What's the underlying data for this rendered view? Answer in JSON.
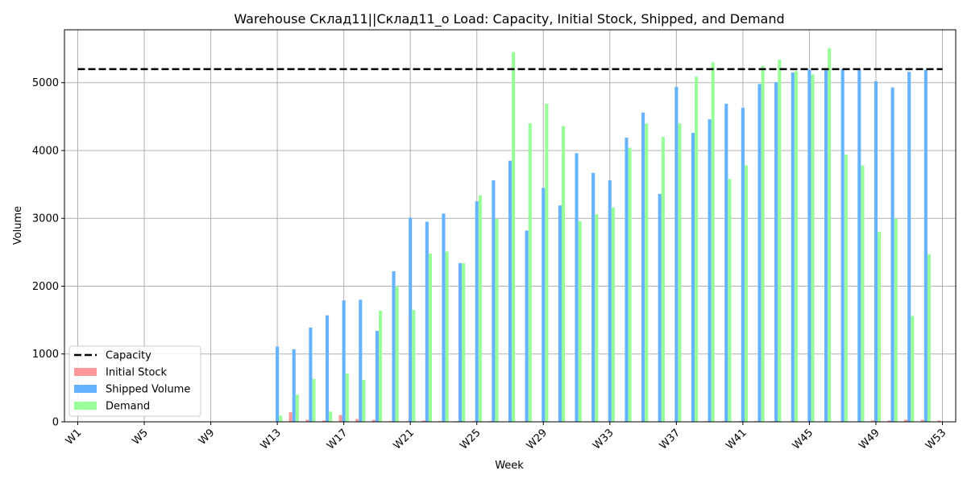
{
  "chart_data": {
    "type": "bar",
    "title": "Warehouse Склад11||Склад11_о Load: Capacity, Initial Stock, Shipped, and Demand",
    "xlabel": "Week",
    "ylabel": "Volume",
    "ylim": [
      0,
      5780
    ],
    "yticks": [
      0,
      1000,
      2000,
      3000,
      4000,
      5000
    ],
    "xtick_labels": [
      "W1",
      "W5",
      "W9",
      "W13",
      "W17",
      "W21",
      "W25",
      "W29",
      "W33",
      "W37",
      "W41",
      "W45",
      "W49",
      "W53"
    ],
    "grid": true,
    "legend_position": "lower-left",
    "categories": [
      "W1",
      "W2",
      "W3",
      "W4",
      "W5",
      "W6",
      "W7",
      "W8",
      "W9",
      "W10",
      "W11",
      "W12",
      "W13",
      "W14",
      "W15",
      "W16",
      "W17",
      "W18",
      "W19",
      "W20",
      "W21",
      "W22",
      "W23",
      "W24",
      "W25",
      "W26",
      "W27",
      "W28",
      "W29",
      "W30",
      "W31",
      "W32",
      "W33",
      "W34",
      "W35",
      "W36",
      "W37",
      "W38",
      "W39",
      "W40",
      "W41",
      "W42",
      "W43",
      "W44",
      "W45",
      "W46",
      "W47",
      "W48",
      "W49",
      "W50",
      "W51",
      "W52",
      "W53"
    ],
    "capacity": {
      "name": "Capacity",
      "value": 5200,
      "color": "#000000"
    },
    "series": [
      {
        "name": "Initial Stock",
        "color": "#ff9999",
        "values": [
          0,
          0,
          0,
          0,
          0,
          0,
          0,
          0,
          0,
          0,
          0,
          0,
          0,
          140,
          30,
          20,
          100,
          40,
          30,
          10,
          10,
          20,
          10,
          10,
          10,
          10,
          0,
          0,
          0,
          0,
          0,
          0,
          0,
          0,
          0,
          0,
          0,
          0,
          10,
          10,
          10,
          10,
          10,
          0,
          0,
          0,
          0,
          0,
          20,
          20,
          30,
          30,
          20
        ]
      },
      {
        "name": "Shipped Volume",
        "color": "#66b3ff",
        "values": [
          0,
          0,
          0,
          0,
          0,
          0,
          0,
          0,
          0,
          0,
          0,
          0,
          1110,
          1070,
          1390,
          1570,
          1790,
          1800,
          1340,
          2220,
          3010,
          2950,
          3070,
          2340,
          3250,
          3560,
          3850,
          2820,
          3450,
          3190,
          3960,
          3670,
          3560,
          4190,
          4560,
          3360,
          4940,
          4260,
          4460,
          4690,
          4630,
          4980,
          5010,
          5150,
          5190,
          5200,
          5200,
          5200,
          5020,
          4930,
          5160,
          5190,
          0
        ]
      },
      {
        "name": "Demand",
        "color": "#99ff99",
        "values": [
          0,
          0,
          0,
          0,
          0,
          0,
          0,
          0,
          0,
          0,
          0,
          0,
          90,
          400,
          630,
          150,
          710,
          620,
          1640,
          2000,
          1650,
          2480,
          2510,
          2340,
          3340,
          2990,
          5450,
          4400,
          4690,
          4360,
          2960,
          3060,
          3160,
          4040,
          4400,
          4200,
          4400,
          5090,
          5300,
          3580,
          3780,
          5250,
          5340,
          5170,
          5120,
          5510,
          3940,
          3780,
          2800,
          3000,
          1560,
          2470,
          0
        ]
      }
    ]
  }
}
